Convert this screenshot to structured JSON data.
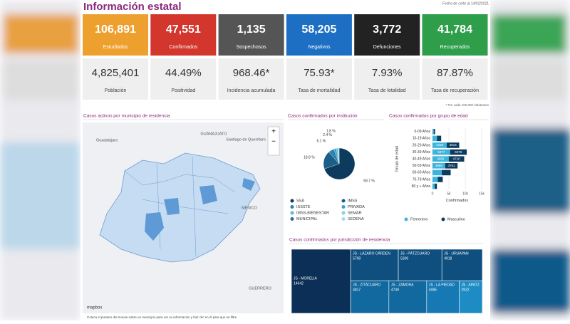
{
  "header": {
    "title": "Información estatal",
    "date": "Fecha de corte al 14/02/2021"
  },
  "cards": [
    {
      "value": "106,891",
      "label": "Estudiados",
      "color": "#eea02f"
    },
    {
      "value": "47,551",
      "label": "Confirmados",
      "color": "#d2362d"
    },
    {
      "value": "1,135",
      "label": "Sospechosos",
      "color": "#555555"
    },
    {
      "value": "58,205",
      "label": "Negativos",
      "color": "#1c6fc2"
    },
    {
      "value": "3,772",
      "label": "Defunciones",
      "color": "#222222"
    },
    {
      "value": "41,784",
      "label": "Recuperados",
      "color": "#2e9e4a"
    }
  ],
  "stats": [
    {
      "value": "4,825,401",
      "label": "Población"
    },
    {
      "value": "44.49%",
      "label": "Positividad"
    },
    {
      "value": "968.46*",
      "label": "Incidencia acumulada"
    },
    {
      "value": "75.93*",
      "label": "Tasa de mortalidad"
    },
    {
      "value": "7.93%",
      "label": "Tasa de letalidad"
    },
    {
      "value": "87.87%",
      "label": "Tasa de recuperación"
    }
  ],
  "footnote": "* Por cada 100,000 habitantes",
  "map": {
    "title": "Casos activos por municipio de residencia",
    "labels": [
      "GUANAJUATO",
      "Santiago de Querétaro",
      "Guadalajara",
      "MÉXICO",
      "GUERRERO"
    ],
    "attribution": "mapbox",
    "note": "Coloca el puntero del mouse sobre un municipio para ver su información y haz clic en él para que se filtre"
  },
  "chart_data": [
    {
      "type": "pie",
      "title": "Casos confirmados por institución",
      "series": [
        {
          "name": "SSA",
          "color": "#0d3b5e"
        },
        {
          "name": "IMSS",
          "color": "#1b5f87"
        },
        {
          "name": "ISSSTE",
          "color": "#2a84b0"
        },
        {
          "name": "PRIVADA",
          "color": "#3ba0c8"
        },
        {
          "name": "IMSS-BIENESTAR",
          "color": "#58b9dc"
        },
        {
          "name": "SEMAR",
          "color": "#7fd0ea"
        },
        {
          "name": "MUNICIPAL",
          "color": "#2f6e8e"
        },
        {
          "name": "SEDENA",
          "color": "#9adff0"
        }
      ],
      "values": [
        69.7,
        18.8,
        6.1,
        2.4,
        1.8,
        0.6,
        0.4,
        0.2
      ],
      "value_labels": [
        "69.7 %",
        "18.8 %",
        "6.1 %",
        "2.4 %",
        "1.8 %",
        null,
        null,
        null
      ]
    },
    {
      "type": "stacked-bar-horizontal",
      "title": "Casos confirmados por grupo de edad",
      "y_label": "Grupo de edad",
      "x_label": "Confirmados",
      "categories": [
        "0-09 Años",
        "10-19 Años",
        "20-29 Años",
        "30-39 Años",
        "40-49 Años",
        "50-59 Años",
        "60-69 Años",
        "70-79 Años",
        "80 y + Años"
      ],
      "series": [
        {
          "name": "Femenino",
          "color": "#3cb4dc",
          "values": [
            380,
            1350,
            4338,
            5377,
            4958,
            3889,
            2846,
            1631,
            700
          ]
        },
        {
          "name": "Masculino",
          "color": "#0d3b5e",
          "values": [
            400,
            1300,
            3814,
            5078,
            4710,
            3761,
            2700,
            1500,
            650
          ]
        }
      ],
      "xlim": [
        0,
        15000
      ],
      "xticks": [
        0,
        {
          "value": 5000,
          "label": "5k"
        },
        {
          "value": 10000,
          "label": "10k"
        },
        {
          "value": 15000,
          "label": "15k"
        }
      ]
    },
    {
      "type": "treemap",
      "title": "Casos confirmados por jurisdicción de residencia",
      "categories": [
        "JS - MORELIA",
        "JS - LÁZARO CÁRDEN",
        "JS - PÁTZCUARO",
        "JS - URUAPAN",
        "JS - ZITÁCUARO",
        "JS - ZAMORA",
        "JS - LA PIEDAD",
        "JS - APATZ"
      ],
      "values": [
        14642,
        5799,
        5300,
        4918,
        4817,
        4749,
        4085,
        2922
      ],
      "colors": [
        "#0b2f57",
        "#0e4f80",
        "#0e4f80",
        "#0e4f80",
        "#11699f",
        "#11699f",
        "#1679b3",
        "#1e8cc4"
      ]
    }
  ]
}
